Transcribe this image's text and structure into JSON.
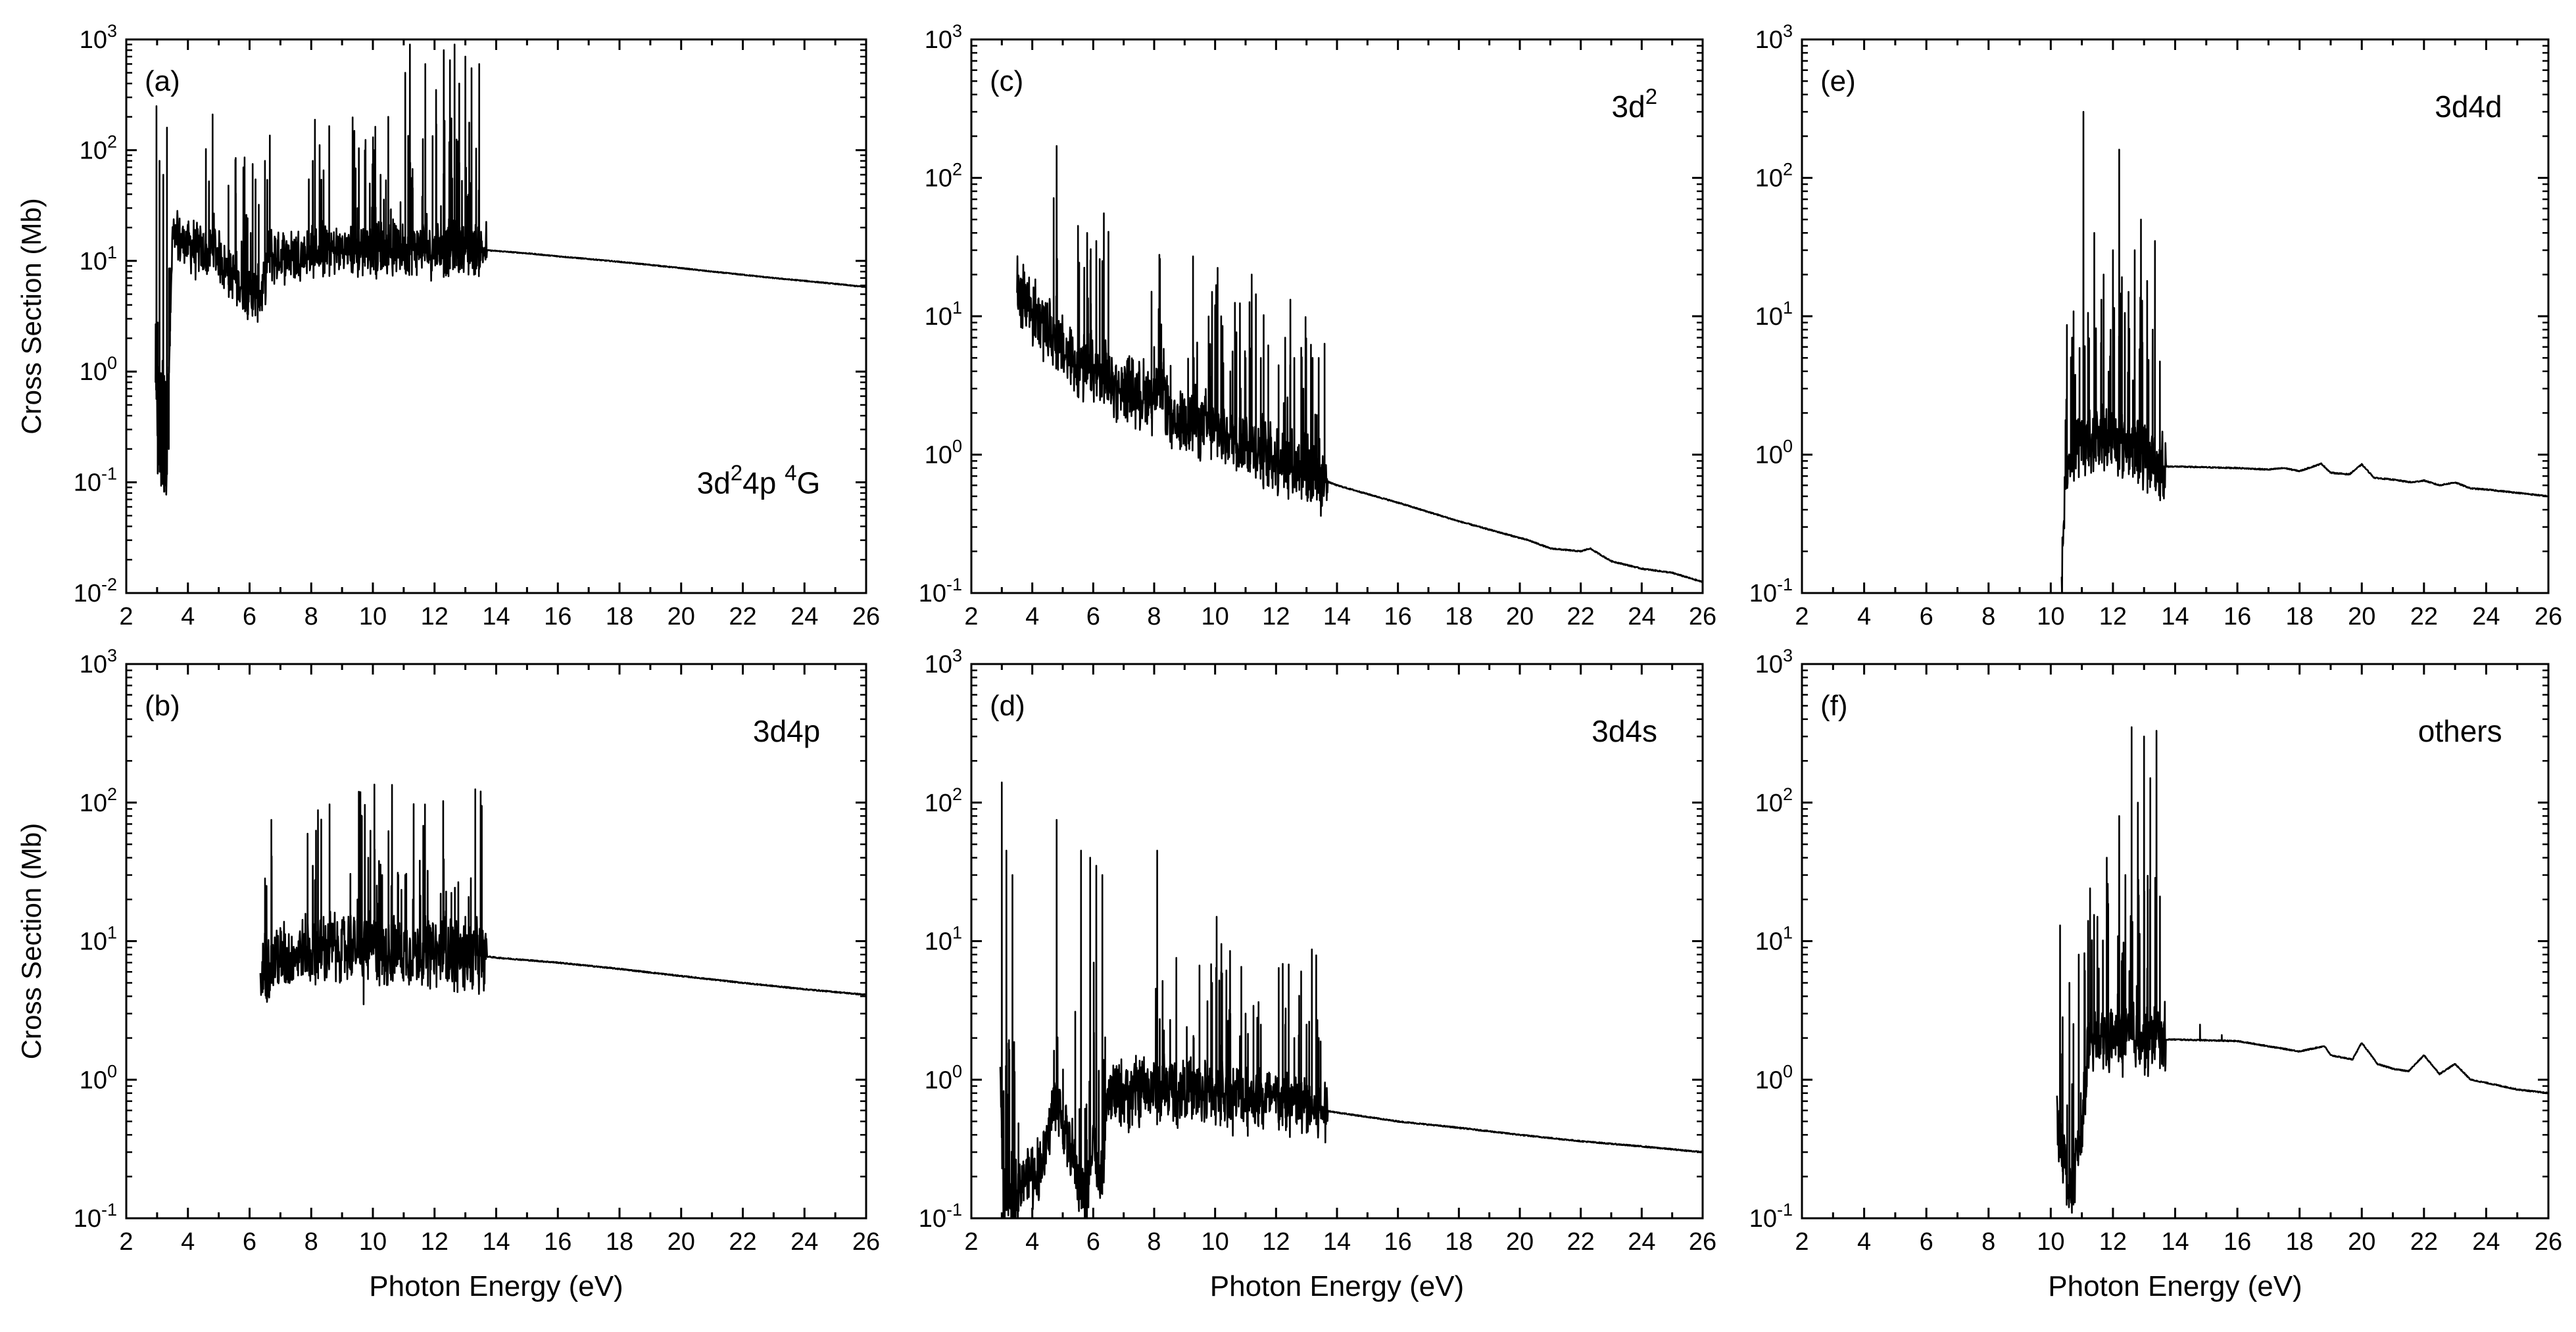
{
  "chart_data": [
    {
      "type": "line",
      "panel_label": "(a)",
      "annotation": "3d²4p  ⁴G",
      "annotation_base": "3d",
      "annotation_sup1": "2",
      "annotation_mid": "4p  ",
      "annotation_sup2": "4",
      "annotation_end": "G",
      "xlabel": "",
      "ylabel": "Cross Section (Mb)",
      "xlim": [
        2,
        26
      ],
      "ylim": [
        0.01,
        1000
      ],
      "yscale": "log",
      "xticks": [
        "2",
        "4",
        "6",
        "8",
        "10",
        "12",
        "14",
        "16",
        "18",
        "20",
        "22",
        "24",
        "26"
      ],
      "yticks": [
        {
          "base": "10",
          "exp": "-2"
        },
        {
          "base": "10",
          "exp": "-1"
        },
        {
          "base": "10",
          "exp": "0"
        },
        {
          "base": "10",
          "exp": "1"
        },
        {
          "base": "10",
          "exp": "2"
        },
        {
          "base": "10",
          "exp": "3"
        }
      ],
      "series": [
        {
          "name": "background",
          "x": [
            2.95,
            3.05,
            3.3,
            3.5,
            3.8,
            4.2,
            4.7,
            4.8,
            5.2,
            5.6,
            5.9,
            6.2,
            6.4,
            6.6,
            7.2,
            8.0,
            8.5,
            9.2,
            9.8,
            10.4,
            11.0,
            12.0,
            13.0,
            13.6,
            14.0,
            15.0,
            16.0,
            17.0,
            18.0,
            19.0,
            20.0,
            21.0,
            22.0,
            23.0,
            24.0,
            25.0,
            26.0
          ],
          "y": [
            1.0,
            0.15,
            0.12,
            16,
            15,
            13,
            11,
            14,
            9,
            6.5,
            5.5,
            5,
            4.8,
            11,
            11.5,
            12,
            12.5,
            12.5,
            13,
            13,
            13,
            13,
            13,
            12.5,
            12.3,
            11.7,
            11,
            10.4,
            9.8,
            9.2,
            8.6,
            8.0,
            7.5,
            7.0,
            6.6,
            6.2,
            5.8
          ]
        },
        {
          "name": "resonances",
          "x": [
            2.98,
            3.02,
            3.08,
            3.14,
            3.2,
            3.26,
            3.32,
            3.38,
            4.8,
            5.55,
            5.8,
            6.1,
            6.5,
            8.05,
            8.4,
            9.5,
            9.75,
            9.9,
            10.05,
            10.25,
            10.5,
            11.05,
            11.2,
            11.7,
            12.05,
            12.3,
            12.5,
            12.65,
            12.8,
            13.0,
            13.2,
            13.45
          ],
          "y": [
            250,
            0.12,
            80,
            0.1,
            60,
            0.15,
            160,
            0.2,
            210,
            85,
            70,
            75,
            80,
            80,
            20,
            30,
            60,
            50,
            100,
            60,
            200,
            500,
            900,
            600,
            350,
            800,
            650,
            900,
            400,
            700,
            550,
            600
          ]
        }
      ]
    },
    {
      "type": "line",
      "panel_label": "(b)",
      "annotation": "3d4p",
      "xlabel": "Photon Energy (eV)",
      "ylabel": "Cross Section (Mb)",
      "xlim": [
        2,
        26
      ],
      "ylim": [
        0.1,
        1000
      ],
      "yscale": "log",
      "xticks": [
        "2",
        "4",
        "6",
        "8",
        "10",
        "12",
        "14",
        "16",
        "18",
        "20",
        "22",
        "24",
        "26"
      ],
      "yticks": [
        {
          "base": "10",
          "exp": "-1"
        },
        {
          "base": "10",
          "exp": "0"
        },
        {
          "base": "10",
          "exp": "1"
        },
        {
          "base": "10",
          "exp": "2"
        },
        {
          "base": "10",
          "exp": "3"
        }
      ],
      "series": [
        {
          "name": "background",
          "x": [
            6.35,
            6.5,
            7.0,
            8.0,
            9.0,
            10.0,
            11.0,
            12.0,
            13.0,
            13.6,
            14.0,
            16.0,
            18.0,
            20.0,
            22.0,
            24.0,
            26.0
          ],
          "y": [
            5,
            7,
            7.5,
            8.5,
            9,
            9,
            8.5,
            8.3,
            8,
            7.8,
            7.6,
            7,
            6.3,
            5.6,
            5.0,
            4.5,
            4.1
          ]
        },
        {
          "name": "resonances",
          "x": [
            6.55,
            8.05,
            8.4,
            9.5,
            9.7,
            9.85,
            10.05,
            10.3,
            10.6,
            11.05,
            11.3,
            11.8,
            12.2,
            12.6,
            13.0,
            13.4
          ],
          "y": [
            25,
            35,
            15,
            20,
            3.5,
            40,
            135,
            30,
            25,
            30,
            20,
            14,
            22,
            12,
            15,
            11
          ]
        }
      ]
    },
    {
      "type": "line",
      "panel_label": "(c)",
      "annotation": "3d²",
      "annotation_base": "3d",
      "annotation_sup1": "2",
      "xlabel": "",
      "ylabel": "",
      "xlim": [
        2,
        26
      ],
      "ylim": [
        0.1,
        1000
      ],
      "yscale": "log",
      "xticks": [
        "2",
        "4",
        "6",
        "8",
        "10",
        "12",
        "14",
        "16",
        "18",
        "20",
        "22",
        "24",
        "26"
      ],
      "yticks": [
        {
          "base": "10",
          "exp": "-1"
        },
        {
          "base": "10",
          "exp": "0"
        },
        {
          "base": "10",
          "exp": "1"
        },
        {
          "base": "10",
          "exp": "2"
        },
        {
          "base": "10",
          "exp": "3"
        }
      ],
      "series": [
        {
          "name": "background",
          "x": [
            3.5,
            3.6,
            4.0,
            4.5,
            4.75,
            5.0,
            5.5,
            6.0,
            6.5,
            7.0,
            7.5,
            8.0,
            8.3,
            8.6,
            9.0,
            10.0,
            11.0,
            12.0,
            13.0,
            13.6,
            14.0,
            16.0,
            18.0,
            20.0,
            20.3,
            21.0,
            22.0,
            22.3,
            23.0,
            24.0,
            25.0,
            26.0
          ],
          "y": [
            18,
            16,
            11,
            8,
            7,
            5.5,
            4.5,
            3.8,
            3.4,
            3.0,
            2.8,
            2.6,
            3.2,
            1.5,
            1.9,
            1.5,
            1.2,
            0.95,
            0.8,
            0.65,
            0.6,
            0.45,
            0.33,
            0.25,
            0.24,
            0.21,
            0.2,
            0.21,
            0.17,
            0.15,
            0.14,
            0.12
          ]
        },
        {
          "name": "resonances",
          "x": [
            4.8,
            5.5,
            5.8,
            6.1,
            6.3,
            8.0,
            8.3,
            9.3,
            9.9,
            10.0,
            10.2,
            10.5,
            11.0,
            11.2,
            11.5,
            12.3,
            12.6,
            12.9,
            13.2,
            13.4
          ],
          "y": [
            170,
            45,
            40,
            35,
            25,
            6,
            4,
            5,
            15,
            12,
            10,
            4,
            5,
            20,
            5,
            7,
            5,
            3,
            5,
            5
          ]
        }
      ]
    },
    {
      "type": "line",
      "panel_label": "(d)",
      "annotation": "3d4s",
      "xlabel": "Photon Energy (eV)",
      "ylabel": "",
      "xlim": [
        2,
        26
      ],
      "ylim": [
        0.1,
        1000
      ],
      "yscale": "log",
      "xticks": [
        "2",
        "4",
        "6",
        "8",
        "10",
        "12",
        "14",
        "16",
        "18",
        "20",
        "22",
        "24",
        "26"
      ],
      "yticks": [
        {
          "base": "10",
          "exp": "-1"
        },
        {
          "base": "10",
          "exp": "0"
        },
        {
          "base": "10",
          "exp": "1"
        },
        {
          "base": "10",
          "exp": "2"
        },
        {
          "base": "10",
          "exp": "3"
        }
      ],
      "series": [
        {
          "name": "background",
          "x": [
            2.95,
            3.1,
            3.3,
            3.5,
            3.8,
            4.2,
            4.5,
            4.75,
            5.0,
            5.5,
            5.8,
            6.0,
            6.2,
            6.5,
            7.0,
            8.0,
            9.0,
            10.0,
            11.0,
            12.0,
            13.0,
            13.6,
            14.0,
            16.0,
            18.0,
            20.0,
            22.0,
            24.0,
            26.0
          ],
          "y": [
            1.0,
            0.12,
            0.15,
            0.18,
            0.2,
            0.22,
            0.35,
            0.8,
            0.5,
            0.2,
            0.13,
            0.5,
            0.15,
            0.75,
            0.8,
            0.85,
            0.85,
            0.8,
            0.75,
            0.7,
            0.65,
            0.6,
            0.58,
            0.5,
            0.45,
            0.4,
            0.36,
            0.33,
            0.3
          ]
        },
        {
          "name": "resonances",
          "x": [
            3.0,
            3.05,
            3.15,
            3.25,
            3.35,
            4.8,
            5.6,
            5.9,
            6.1,
            6.3,
            8.1,
            8.5,
            9.3,
            9.9,
            10.05,
            10.2,
            10.5,
            11.0,
            11.5,
            12.3,
            12.6,
            13.0,
            13.4
          ],
          "y": [
            140,
            0.1,
            45,
            0.12,
            30,
            75,
            45,
            40,
            35,
            30,
            45,
            1.2,
            2,
            5,
            15,
            6,
            3,
            3,
            2.5,
            2.5,
            2,
            2.5,
            2
          ]
        }
      ]
    },
    {
      "type": "line",
      "panel_label": "(e)",
      "annotation": "3d4d",
      "xlabel": "",
      "ylabel": "",
      "xlim": [
        2,
        26
      ],
      "ylim": [
        0.1,
        1000
      ],
      "yscale": "log",
      "xticks": [
        "2",
        "4",
        "6",
        "8",
        "10",
        "12",
        "14",
        "16",
        "18",
        "20",
        "22",
        "24",
        "26"
      ],
      "yticks": [
        {
          "base": "10",
          "exp": "-1"
        },
        {
          "base": "10",
          "exp": "0"
        },
        {
          "base": "10",
          "exp": "1"
        },
        {
          "base": "10",
          "exp": "2"
        },
        {
          "base": "10",
          "exp": "3"
        }
      ],
      "series": [
        {
          "name": "background",
          "x": [
            10.35,
            10.45,
            10.6,
            11.0,
            11.5,
            12.0,
            12.5,
            13.0,
            13.6,
            14.0,
            16.0,
            17.0,
            17.5,
            18.0,
            18.7,
            19.0,
            19.6,
            20.0,
            20.4,
            21.0,
            21.6,
            22.0,
            22.5,
            23.0,
            23.5,
            24.0,
            25.0,
            26.0
          ],
          "y": [
            0.1,
            0.6,
            1.0,
            1.2,
            1.3,
            1.3,
            1.2,
            1.0,
            0.82,
            0.82,
            0.8,
            0.78,
            0.8,
            0.76,
            0.86,
            0.74,
            0.72,
            0.85,
            0.68,
            0.66,
            0.63,
            0.65,
            0.6,
            0.63,
            0.57,
            0.56,
            0.53,
            0.5
          ]
        },
        {
          "name": "resonances",
          "x": [
            10.5,
            10.7,
            11.05,
            11.4,
            11.7,
            12.0,
            12.2,
            12.5,
            12.7,
            12.9,
            13.1,
            13.35
          ],
          "y": [
            2.5,
            4,
            300,
            40,
            20,
            30,
            160,
            15,
            30,
            50,
            18,
            35
          ]
        }
      ]
    },
    {
      "type": "line",
      "panel_label": "(f)",
      "annotation": "others",
      "xlabel": "Photon Energy (eV)",
      "ylabel": "",
      "xlim": [
        2,
        26
      ],
      "ylim": [
        0.1,
        1000
      ],
      "yscale": "log",
      "xticks": [
        "2",
        "4",
        "6",
        "8",
        "10",
        "12",
        "14",
        "16",
        "18",
        "20",
        "22",
        "24",
        "26"
      ],
      "yticks": [
        {
          "base": "10",
          "exp": "-1"
        },
        {
          "base": "10",
          "exp": "0"
        },
        {
          "base": "10",
          "exp": "1"
        },
        {
          "base": "10",
          "exp": "2"
        },
        {
          "base": "10",
          "exp": "3"
        }
      ],
      "series": [
        {
          "name": "background",
          "x": [
            10.2,
            10.4,
            10.6,
            10.8,
            11.0,
            11.2,
            11.6,
            12.0,
            12.5,
            13.0,
            13.6,
            14.0,
            16.0,
            18.0,
            18.8,
            19.0,
            19.7,
            20.0,
            20.5,
            21.0,
            21.5,
            22.0,
            22.5,
            23.0,
            23.5,
            24.0,
            25.0,
            26.0
          ],
          "y": [
            0.5,
            0.3,
            0.15,
            0.25,
            0.4,
            1.8,
            2.0,
            2.0,
            2.0,
            2.0,
            1.95,
            1.95,
            1.9,
            1.6,
            1.75,
            1.5,
            1.4,
            1.85,
            1.3,
            1.2,
            1.15,
            1.5,
            1.1,
            1.3,
            1.0,
            0.95,
            0.85,
            0.8
          ]
        },
        {
          "name": "resonances",
          "x": [
            10.3,
            10.6,
            10.9,
            11.2,
            11.5,
            11.8,
            12.2,
            12.4,
            12.6,
            12.8,
            13.0,
            13.2,
            13.4,
            14.8,
            15.5
          ],
          "y": [
            13,
            5,
            8,
            14,
            15,
            40,
            80,
            30,
            350,
            100,
            300,
            150,
            330,
            2.5,
            2.1
          ]
        }
      ]
    }
  ]
}
